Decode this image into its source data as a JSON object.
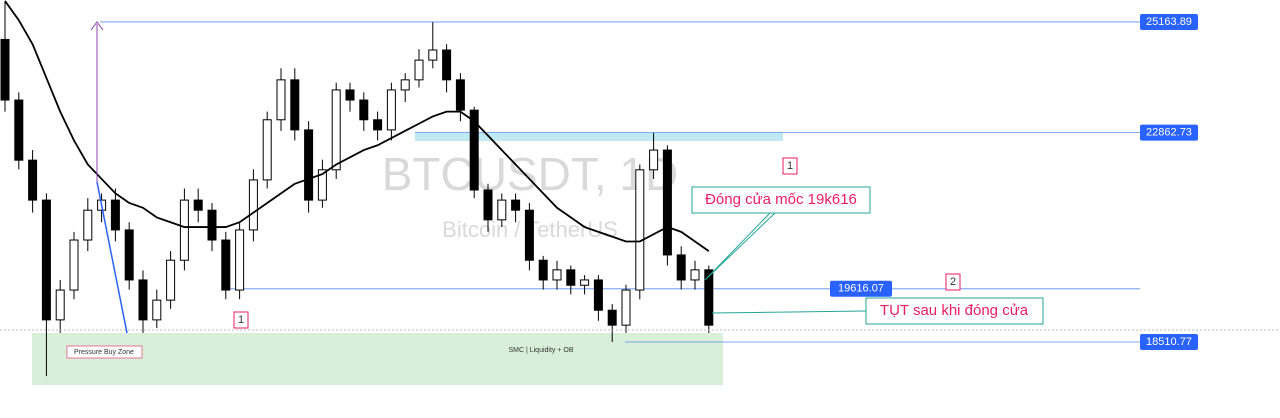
{
  "chart_data": {
    "type": "candlestick",
    "watermark_title": "BTCUSDT, 1D",
    "watermark_subtitle": "Bitcoin / TetherUS",
    "ylim": [
      16930,
      25620
    ],
    "up_color": "#ffffff",
    "down_color": "#000000",
    "ma_color": "#000000",
    "open": [
      24800,
      23540,
      22290,
      21460,
      18970,
      19590,
      20630,
      21250,
      21460,
      20840,
      19800,
      18970,
      19380,
      20210,
      21460,
      21250,
      20630,
      19590,
      20840,
      21880,
      23130,
      23960,
      22920,
      21460,
      22090,
      23750,
      23540,
      23130,
      22920,
      23750,
      23960,
      24370,
      24580,
      23960,
      23330,
      21670,
      21050,
      21460,
      21250,
      20210,
      19800,
      20010,
      19690,
      19800,
      19170,
      18860,
      19590,
      22090,
      22500,
      20320,
      19800,
      20010
    ],
    "high": [
      25600,
      23700,
      22500,
      21600,
      19800,
      20800,
      21500,
      21600,
      21700,
      21000,
      20000,
      19600,
      20400,
      21700,
      21700,
      21400,
      20800,
      21000,
      22100,
      23300,
      24200,
      24200,
      23100,
      22300,
      23900,
      23900,
      23700,
      23300,
      23900,
      24100,
      24600,
      25160,
      24700,
      24100,
      23400,
      21800,
      21600,
      21600,
      21400,
      20300,
      20200,
      20100,
      19900,
      19900,
      19300,
      19700,
      22200,
      22860,
      22600,
      20500,
      20200,
      20100
    ],
    "low": [
      23300,
      22100,
      21200,
      17800,
      18700,
      19400,
      20400,
      21000,
      20600,
      19600,
      18700,
      18800,
      19200,
      20000,
      21000,
      20400,
      19400,
      19400,
      20600,
      21700,
      22900,
      22700,
      21200,
      21300,
      21900,
      23300,
      22900,
      22700,
      22700,
      23500,
      23800,
      24200,
      23700,
      23100,
      21500,
      20800,
      20900,
      21000,
      20000,
      19600,
      19600,
      19500,
      19500,
      18950,
      18510,
      18700,
      19400,
      21900,
      20100,
      19600,
      19600,
      18700
    ],
    "close": [
      23540,
      22290,
      21460,
      18970,
      19590,
      20630,
      21250,
      21460,
      20840,
      19800,
      18970,
      19380,
      20210,
      21460,
      21250,
      20630,
      19590,
      20840,
      21880,
      23130,
      23960,
      22920,
      21460,
      22090,
      23750,
      23540,
      23130,
      22920,
      23750,
      23960,
      24370,
      24580,
      23960,
      23330,
      21670,
      21050,
      21460,
      21250,
      20210,
      19800,
      20010,
      19690,
      19800,
      19170,
      18860,
      19590,
      22090,
      22500,
      20320,
      19800,
      20010,
      18860
    ],
    "ma": [
      25600,
      25200,
      24700,
      24000,
      23300,
      22700,
      22200,
      21900,
      21600,
      21400,
      21300,
      21100,
      21000,
      20900,
      20900,
      20900,
      20900,
      21000,
      21200,
      21400,
      21600,
      21800,
      21900,
      22000,
      22200,
      22350,
      22500,
      22600,
      22750,
      22900,
      23050,
      23200,
      23300,
      23300,
      23100,
      22800,
      22500,
      22200,
      21900,
      21600,
      21300,
      21100,
      20900,
      20800,
      20700,
      20600,
      20600,
      20750,
      20900,
      20800,
      20600,
      20400
    ],
    "levels": [
      25163.89,
      22862.73,
      19616.07,
      18510.77
    ],
    "annotations": {
      "close_note": "Đóng cửa mốc 19k616",
      "drop_note": "TỤT sau khi đóng cửa",
      "mark_1": "1",
      "mark_2": "2",
      "mark_1b": "1",
      "zone_left": "Pressure Buy Zone",
      "zone_mid": "SMC | Liquidity + OB"
    }
  }
}
